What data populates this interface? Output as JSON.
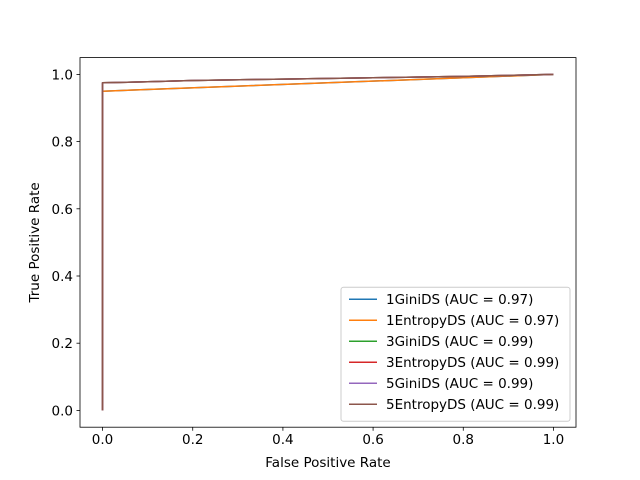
{
  "chart_data": {
    "type": "line",
    "title": "",
    "xlabel": "False Positive Rate",
    "ylabel": "True Positive Rate",
    "xlim": [
      -0.05,
      1.05
    ],
    "ylim": [
      -0.05,
      1.05
    ],
    "xticks": [
      0.0,
      0.2,
      0.4,
      0.6,
      0.8,
      1.0
    ],
    "yticks": [
      0.0,
      0.2,
      0.4,
      0.6,
      0.8,
      1.0
    ],
    "xtick_labels": [
      "0.0",
      "0.2",
      "0.4",
      "0.6",
      "0.8",
      "1.0"
    ],
    "ytick_labels": [
      "0.0",
      "0.2",
      "0.4",
      "0.6",
      "0.8",
      "1.0"
    ],
    "grid": false,
    "legend_position": "lower-right",
    "series": [
      {
        "name": "1GiniDS (AUC = 0.97)",
        "color": "#1f77b4",
        "x": [
          0.0,
          0.0,
          1.0
        ],
        "y": [
          0.0,
          0.95,
          1.0
        ]
      },
      {
        "name": "1EntropyDS (AUC = 0.97)",
        "color": "#ff7f0e",
        "x": [
          0.0,
          0.0,
          1.0
        ],
        "y": [
          0.0,
          0.95,
          1.0
        ]
      },
      {
        "name": "3GiniDS (AUC = 0.99)",
        "color": "#2ca02c",
        "x": [
          0.0,
          0.0,
          0.1,
          0.2,
          0.4,
          0.6,
          0.8,
          0.9,
          1.0
        ],
        "y": [
          0.0,
          0.975,
          0.978,
          0.982,
          0.986,
          0.99,
          0.994,
          0.997,
          1.0
        ]
      },
      {
        "name": "3EntropyDS (AUC = 0.99)",
        "color": "#d62728",
        "x": [
          0.0,
          0.0,
          0.1,
          0.2,
          0.4,
          0.6,
          0.8,
          0.9,
          1.0
        ],
        "y": [
          0.0,
          0.975,
          0.978,
          0.982,
          0.986,
          0.99,
          0.994,
          0.997,
          1.0
        ]
      },
      {
        "name": "5GiniDS (AUC = 0.99)",
        "color": "#9467bd",
        "x": [
          0.0,
          0.0,
          0.1,
          0.2,
          0.4,
          0.6,
          0.8,
          0.9,
          1.0
        ],
        "y": [
          0.0,
          0.975,
          0.978,
          0.982,
          0.986,
          0.99,
          0.994,
          0.997,
          1.0
        ]
      },
      {
        "name": "5EntropyDS (AUC = 0.99)",
        "color": "#8c564b",
        "x": [
          0.0,
          0.0,
          0.1,
          0.2,
          0.4,
          0.6,
          0.8,
          0.9,
          1.0
        ],
        "y": [
          0.0,
          0.975,
          0.978,
          0.982,
          0.986,
          0.99,
          0.994,
          0.997,
          1.0
        ]
      }
    ]
  }
}
